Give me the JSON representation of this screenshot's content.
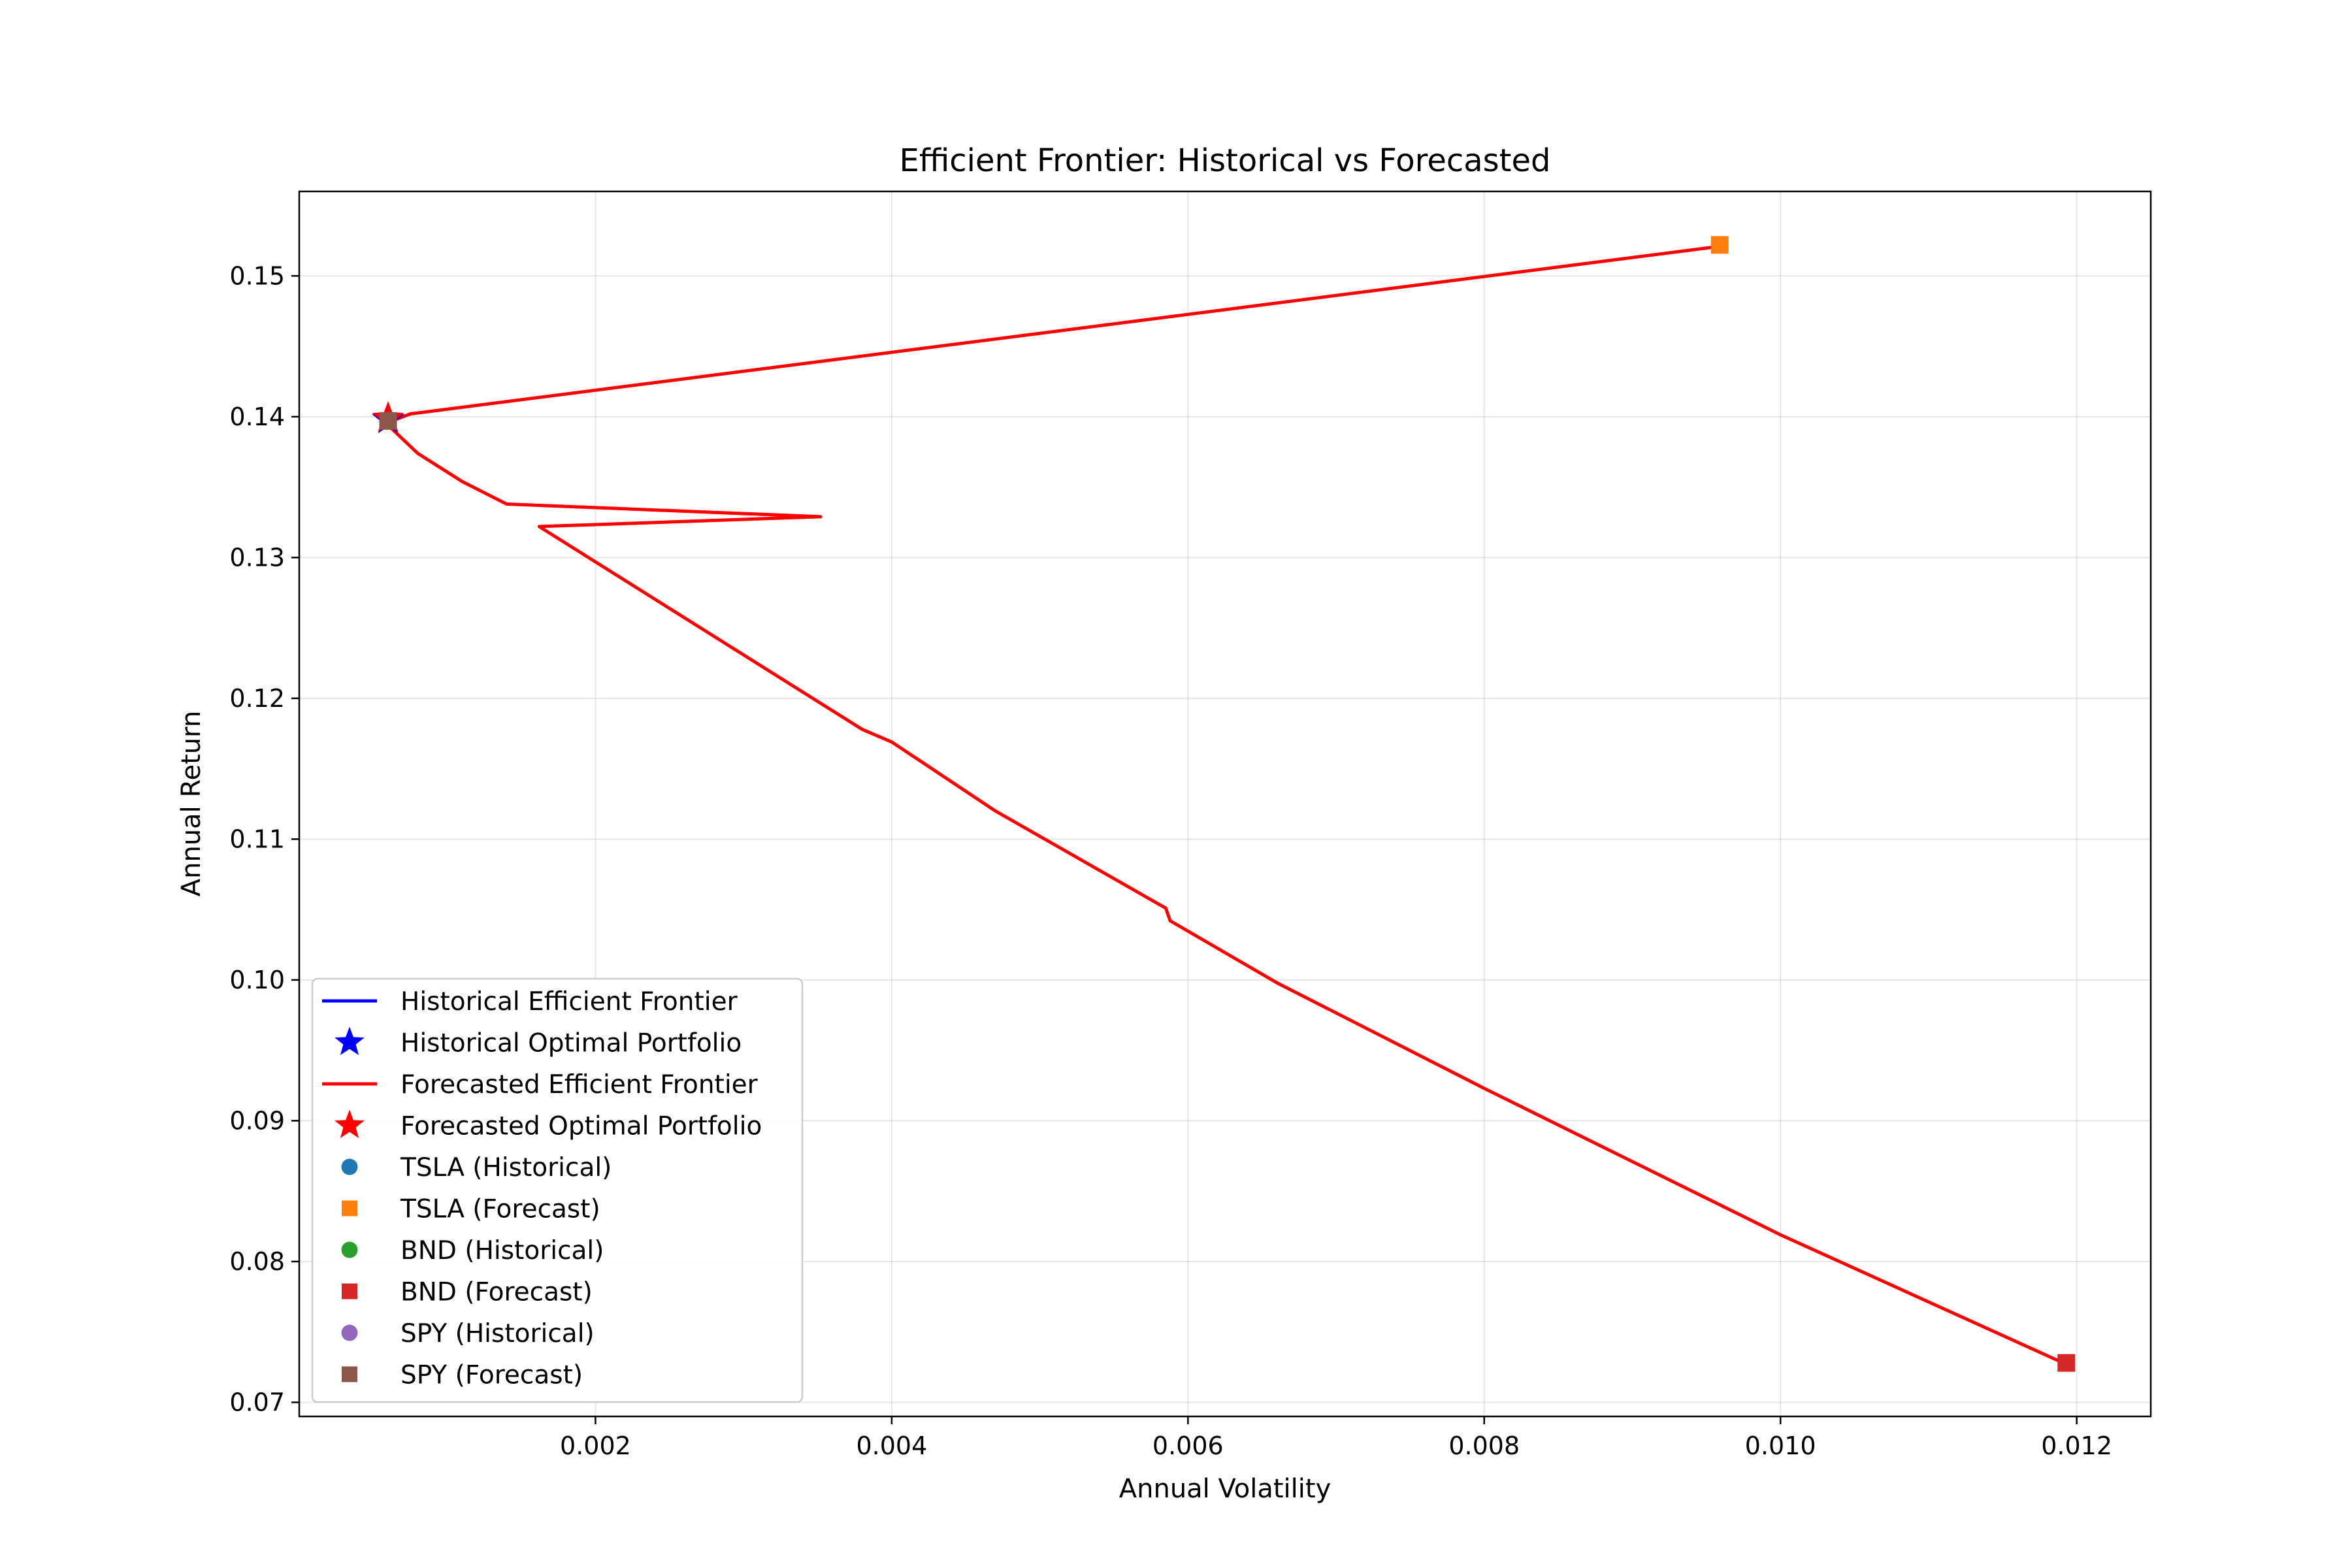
{
  "chart_data": {
    "type": "line",
    "title": "Efficient Frontier: Historical vs Forecasted",
    "xlabel": "Annual Volatility",
    "ylabel": "Annual Return",
    "xlim": [
      0.0,
      0.0125
    ],
    "ylim": [
      0.069,
      0.156
    ],
    "x_ticks": [
      0.002,
      0.004,
      0.006,
      0.008,
      0.01,
      0.012
    ],
    "x_tick_labels": [
      "0.002",
      "0.004",
      "0.006",
      "0.008",
      "0.010",
      "0.012"
    ],
    "y_ticks": [
      0.07,
      0.08,
      0.09,
      0.1,
      0.11,
      0.12,
      0.13,
      0.14,
      0.15
    ],
    "y_tick_labels": [
      "0.07",
      "0.08",
      "0.09",
      "0.10",
      "0.11",
      "0.12",
      "0.13",
      "0.14",
      "0.15"
    ],
    "grid": true,
    "legend_position": "lower-left",
    "series": [
      {
        "name": "Historical Efficient Frontier",
        "kind": "line",
        "color": "#0000ff",
        "marker": "line",
        "points": [
          [
            0.00058,
            0.1398
          ],
          [
            0.00062,
            0.1401
          ]
        ]
      },
      {
        "name": "Historical Optimal Portfolio",
        "kind": "scatter",
        "color": "#0000ff",
        "marker": "star",
        "points": [
          [
            0.0006,
            0.1398
          ]
        ]
      },
      {
        "name": "Forecasted Efficient Frontier",
        "kind": "line",
        "color": "#ff0000",
        "marker": "line",
        "points": [
          [
            0.00959,
            0.1521
          ],
          [
            0.00075,
            0.1402
          ],
          [
            0.00065,
            0.1398
          ],
          [
            0.00058,
            0.1396
          ],
          [
            0.00064,
            0.139
          ],
          [
            0.0008,
            0.1374
          ],
          [
            0.0011,
            0.1354
          ],
          [
            0.0014,
            0.1338
          ],
          [
            0.00352,
            0.1329
          ],
          [
            0.00162,
            0.1322
          ],
          [
            0.0038,
            0.1178
          ],
          [
            0.004,
            0.1169
          ],
          [
            0.0047,
            0.112
          ],
          [
            0.00585,
            0.1051
          ],
          [
            0.00588,
            0.1042
          ],
          [
            0.0066,
            0.0998
          ],
          [
            0.008,
            0.0923
          ],
          [
            0.01,
            0.0819
          ],
          [
            0.01193,
            0.0727
          ]
        ]
      },
      {
        "name": "Forecasted Optimal Portfolio",
        "kind": "scatter",
        "color": "#ff0000",
        "marker": "star",
        "points": [
          [
            0.0006,
            0.1399
          ]
        ]
      },
      {
        "name": "TSLA (Historical)",
        "kind": "scatter",
        "color": "#1f77b4",
        "marker": "circle",
        "points": []
      },
      {
        "name": "TSLA (Forecast)",
        "kind": "scatter",
        "color": "#ff7f0e",
        "marker": "square",
        "points": [
          [
            0.00959,
            0.1522
          ]
        ]
      },
      {
        "name": "BND (Historical)",
        "kind": "scatter",
        "color": "#2ca02c",
        "marker": "circle",
        "points": []
      },
      {
        "name": "BND (Forecast)",
        "kind": "scatter",
        "color": "#d62728",
        "marker": "square",
        "points": [
          [
            0.01193,
            0.0728
          ]
        ]
      },
      {
        "name": "SPY (Historical)",
        "kind": "scatter",
        "color": "#9467bd",
        "marker": "circle",
        "points": []
      },
      {
        "name": "SPY (Forecast)",
        "kind": "scatter",
        "color": "#8c564b",
        "marker": "square",
        "points": [
          [
            0.0006,
            0.1397
          ]
        ]
      }
    ]
  }
}
